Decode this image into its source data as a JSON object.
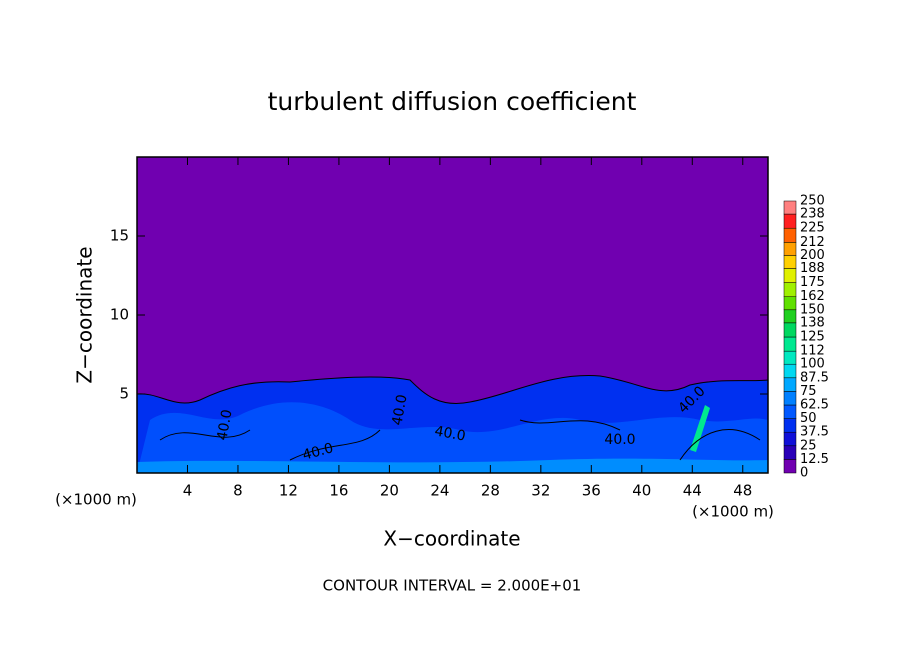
{
  "chart_data": {
    "type": "contour",
    "title": "turbulent diffusion coefficient",
    "x_label": "X−coordinate",
    "y_label": "Z−coordinate",
    "x_unit": "(×1000 m)",
    "y_unit": "(×1000 m)",
    "footnote": "CONTOUR INTERVAL = 2.000E+01",
    "xlim": [
      0,
      50
    ],
    "xticks": [
      4,
      8,
      12,
      16,
      20,
      24,
      28,
      32,
      36,
      40,
      44,
      48
    ],
    "ylim": [
      0,
      20
    ],
    "yticks": [
      5,
      10,
      15
    ],
    "contour_labels": [
      "40.0",
      "40.0",
      "40.0",
      "40.0",
      "40.0",
      "40.0"
    ],
    "colorbar": {
      "levels": [
        0,
        12.5,
        25,
        37.5,
        50,
        62.5,
        75,
        87.5,
        100,
        112,
        125,
        138,
        150,
        162,
        175,
        188,
        200,
        212,
        225,
        238,
        250
      ],
      "colors": [
        "#7000b0",
        "#2a00b8",
        "#1010d8",
        "#0030f0",
        "#0058ff",
        "#0080ff",
        "#00a8ff",
        "#00d8f0",
        "#00e8c0",
        "#00e890",
        "#00d860",
        "#20d020",
        "#60e000",
        "#a0f000",
        "#e0f000",
        "#ffd000",
        "#ffa000",
        "#ff6000",
        "#ff2020",
        "#ff8080"
      ]
    }
  }
}
